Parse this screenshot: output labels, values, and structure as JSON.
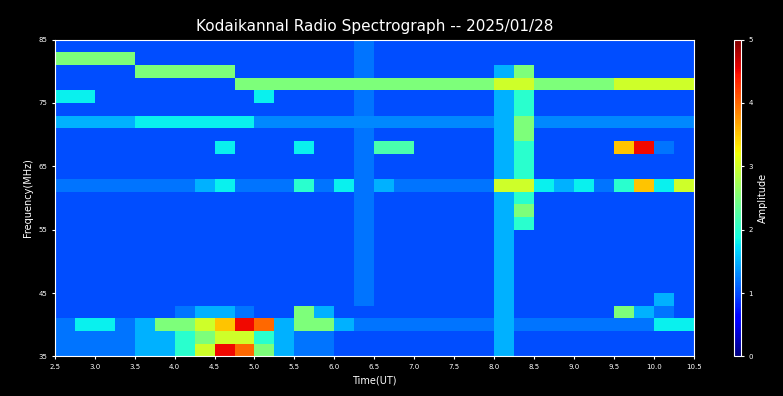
{
  "chart_data": {
    "type": "heatmap",
    "title": "Kodaikannal Radio Spectrograph -- 2025/01/28",
    "x_label": "Time(UT)",
    "y_label": "Frequency(MHz)",
    "xlim": [
      2.5,
      10.5
    ],
    "xticks": [
      2.5,
      3.0,
      3.5,
      4.0,
      4.5,
      5.0,
      5.5,
      6.0,
      6.5,
      7.0,
      7.5,
      8.0,
      8.5,
      9.0,
      9.5,
      10.0,
      10.5
    ],
    "ylim": [
      35,
      85
    ],
    "yticks": [
      35,
      45,
      55,
      65,
      75,
      85
    ],
    "color": "jet",
    "colorbar": {
      "label": "Amplitude",
      "range": [
        0,
        5
      ],
      "ticks": [
        0,
        1,
        2,
        3,
        4,
        5
      ]
    },
    "cells": [
      [
        1.2,
        1.2,
        1.2,
        1.2,
        1.5,
        1.5,
        2,
        3,
        4.5,
        4,
        2.5,
        1.5,
        1.2,
        1.2,
        1,
        1,
        1,
        1,
        1,
        1,
        1,
        1,
        1.5,
        1,
        1,
        1,
        1,
        1,
        1,
        1,
        1,
        1
      ],
      [
        1.2,
        1.2,
        1.2,
        1.2,
        1.5,
        1.5,
        2,
        2.5,
        3,
        3,
        2,
        1.5,
        1.2,
        1.2,
        1,
        1,
        1,
        1,
        1,
        1,
        1,
        1,
        1.5,
        1,
        1,
        1,
        1,
        1,
        1,
        1,
        1,
        1
      ],
      [
        1.2,
        1.8,
        1.8,
        1.2,
        1.5,
        2.5,
        2.5,
        3,
        3.5,
        4.5,
        4,
        1.5,
        2.5,
        2.5,
        1.5,
        1.2,
        1.2,
        1.2,
        1.2,
        1.2,
        1.2,
        1.2,
        1.5,
        1.2,
        1.2,
        1.2,
        1.2,
        1.2,
        1.2,
        1.2,
        1.8,
        1.8
      ],
      [
        1,
        1,
        1,
        1,
        1,
        1,
        1.2,
        1.5,
        1.5,
        1.2,
        1,
        1,
        2.5,
        1.5,
        1,
        1,
        1,
        1,
        1,
        1,
        1,
        1,
        1.5,
        1,
        1,
        1,
        1,
        1,
        2.5,
        1.5,
        1.2,
        1
      ],
      [
        1,
        1,
        1,
        1,
        1,
        1,
        1,
        1,
        1,
        1,
        1,
        1,
        1,
        1,
        1,
        1.2,
        1,
        1,
        1,
        1,
        1,
        1,
        1.5,
        1,
        1,
        1,
        1,
        1,
        1,
        1,
        1.5,
        1
      ],
      [
        1,
        1,
        1,
        1,
        1,
        1,
        1,
        1,
        1,
        1,
        1,
        1,
        1,
        1,
        1,
        1.2,
        1,
        1,
        1,
        1,
        1,
        1,
        1.5,
        1,
        1,
        1,
        1,
        1,
        1,
        1,
        1,
        1
      ],
      [
        1,
        1,
        1,
        1,
        1,
        1,
        1,
        1,
        1,
        1,
        1,
        1,
        1,
        1,
        1,
        1.2,
        1,
        1,
        1,
        1,
        1,
        1,
        1.5,
        1,
        1,
        1,
        1,
        1,
        1,
        1,
        1,
        1
      ],
      [
        1,
        1,
        1,
        1,
        1,
        1,
        1,
        1,
        1,
        1,
        1,
        1,
        1,
        1,
        1,
        1.2,
        1,
        1,
        1,
        1,
        1,
        1,
        1.5,
        1,
        1,
        1,
        1,
        1,
        1,
        1,
        1,
        1
      ],
      [
        1,
        1,
        1,
        1,
        1,
        1,
        1,
        1,
        1,
        1,
        1,
        1,
        1,
        1,
        1,
        1.2,
        1,
        1,
        1,
        1,
        1,
        1,
        1.5,
        1,
        1,
        1,
        1,
        1,
        1,
        1,
        1,
        1
      ],
      [
        1,
        1,
        1,
        1,
        1,
        1,
        1,
        1,
        1,
        1,
        1,
        1,
        1,
        1,
        1,
        1.2,
        1,
        1,
        1,
        1,
        1,
        1,
        1.5,
        1,
        1,
        1,
        1,
        1,
        1,
        1,
        1,
        1
      ],
      [
        1,
        1,
        1,
        1,
        1,
        1,
        1,
        1,
        1,
        1,
        1,
        1,
        1,
        1,
        1,
        1.2,
        1,
        1,
        1,
        1,
        1,
        1,
        1.5,
        2,
        1,
        1,
        1,
        1,
        1,
        1,
        1,
        1
      ],
      [
        1,
        1,
        1,
        1,
        1,
        1,
        1,
        1,
        1,
        1,
        1,
        1,
        1,
        1,
        1,
        1.2,
        1,
        1,
        1,
        1,
        1,
        1,
        1.5,
        2.5,
        1,
        1,
        1,
        1,
        1,
        1,
        1,
        1
      ],
      [
        1,
        1,
        1,
        1,
        1,
        1,
        1,
        1,
        1,
        1,
        1,
        1,
        1,
        1,
        1,
        1.2,
        1,
        1,
        1,
        1,
        1,
        1,
        1.5,
        2,
        1,
        1,
        1,
        1,
        1,
        1,
        1,
        1
      ],
      [
        1.2,
        1.2,
        1.2,
        1.2,
        1.2,
        1.2,
        1.2,
        1.5,
        1.8,
        1.2,
        1.2,
        1.2,
        2,
        1.2,
        1.8,
        1.2,
        1.5,
        1.2,
        1.2,
        1.2,
        1.2,
        1.2,
        3,
        3,
        1.8,
        1.5,
        1.8,
        1.2,
        2,
        3.5,
        1.8,
        3
      ],
      [
        1,
        1,
        1,
        1,
        1,
        1,
        1,
        1,
        1,
        1,
        1,
        1,
        1,
        1,
        1,
        1.2,
        1,
        1,
        1,
        1,
        1,
        1,
        1.5,
        2,
        1,
        1,
        1,
        1,
        1,
        1,
        1,
        1
      ],
      [
        1,
        1,
        1,
        1,
        1,
        1,
        1,
        1,
        1,
        1,
        1,
        1,
        1,
        1,
        1,
        1.2,
        1,
        1,
        1,
        1,
        1,
        1,
        1.5,
        2,
        1,
        1,
        1,
        1,
        1,
        1,
        1,
        1
      ],
      [
        1,
        1,
        1,
        1,
        1,
        1,
        1,
        1,
        1.8,
        1,
        1,
        1,
        1.8,
        1,
        1,
        1.2,
        2.2,
        2.2,
        1,
        1,
        1,
        1,
        1.5,
        2,
        1,
        1,
        1,
        1,
        3.5,
        4.5,
        1.2,
        1
      ],
      [
        1,
        1,
        1,
        1,
        1,
        1,
        1,
        1,
        1,
        1,
        1,
        1,
        1,
        1,
        1,
        1.2,
        1,
        1,
        1,
        1,
        1,
        1,
        1.5,
        2.5,
        1,
        1,
        1,
        1,
        1,
        1,
        1,
        1
      ],
      [
        1.5,
        1.5,
        1.5,
        1.5,
        1.8,
        1.8,
        1.8,
        1.8,
        1.8,
        1.8,
        1.3,
        1.3,
        1.3,
        1.3,
        1.3,
        1.3,
        1.3,
        1.3,
        1.3,
        1.3,
        1.3,
        1.3,
        1.5,
        2.5,
        1.3,
        1.3,
        1.3,
        1.3,
        1.3,
        1.3,
        1.3,
        1.3
      ],
      [
        1,
        1,
        1,
        1,
        1,
        1,
        1,
        1,
        1,
        1,
        1,
        1,
        1,
        1,
        1,
        1.2,
        1,
        1,
        1,
        1,
        1,
        1,
        1.5,
        2,
        1,
        1,
        1,
        1,
        1,
        1,
        1,
        1
      ],
      [
        1.8,
        1.8,
        1,
        1,
        1,
        1,
        1,
        1,
        1,
        1,
        1.8,
        1,
        1,
        1,
        1,
        1.2,
        1,
        1,
        1,
        1,
        1,
        1,
        1.5,
        2,
        1,
        1,
        1,
        1,
        1,
        1,
        1,
        1
      ],
      [
        1,
        1,
        1,
        1,
        1,
        1,
        1,
        1,
        1,
        2.5,
        2.5,
        2.5,
        2.5,
        2.5,
        2.5,
        2.5,
        2.5,
        2.5,
        2.5,
        2.5,
        2.5,
        2.5,
        3,
        3,
        2.5,
        2.5,
        2.5,
        2.5,
        3,
        3,
        3,
        3
      ],
      [
        1,
        1,
        1,
        1,
        2.5,
        2.5,
        2.5,
        2.5,
        2.5,
        1,
        1,
        1,
        1,
        1,
        1,
        1.2,
        1,
        1,
        1,
        1,
        1,
        1,
        1.5,
        2.5,
        1,
        1,
        1,
        1,
        1,
        1,
        1,
        1
      ],
      [
        2.5,
        2.5,
        2.5,
        2.5,
        1,
        1,
        1,
        1,
        1,
        1,
        1,
        1,
        1,
        1,
        1,
        1.2,
        1,
        1,
        1,
        1,
        1,
        1,
        1,
        1,
        1,
        1,
        1,
        1,
        1,
        1,
        1,
        1
      ],
      [
        1,
        1,
        1,
        1,
        1,
        1,
        1,
        1,
        1,
        1,
        1,
        1,
        1,
        1,
        1,
        1.2,
        1,
        1,
        1,
        1,
        1,
        1,
        1,
        1,
        1,
        1,
        1,
        1,
        1,
        1,
        1,
        1
      ]
    ]
  }
}
